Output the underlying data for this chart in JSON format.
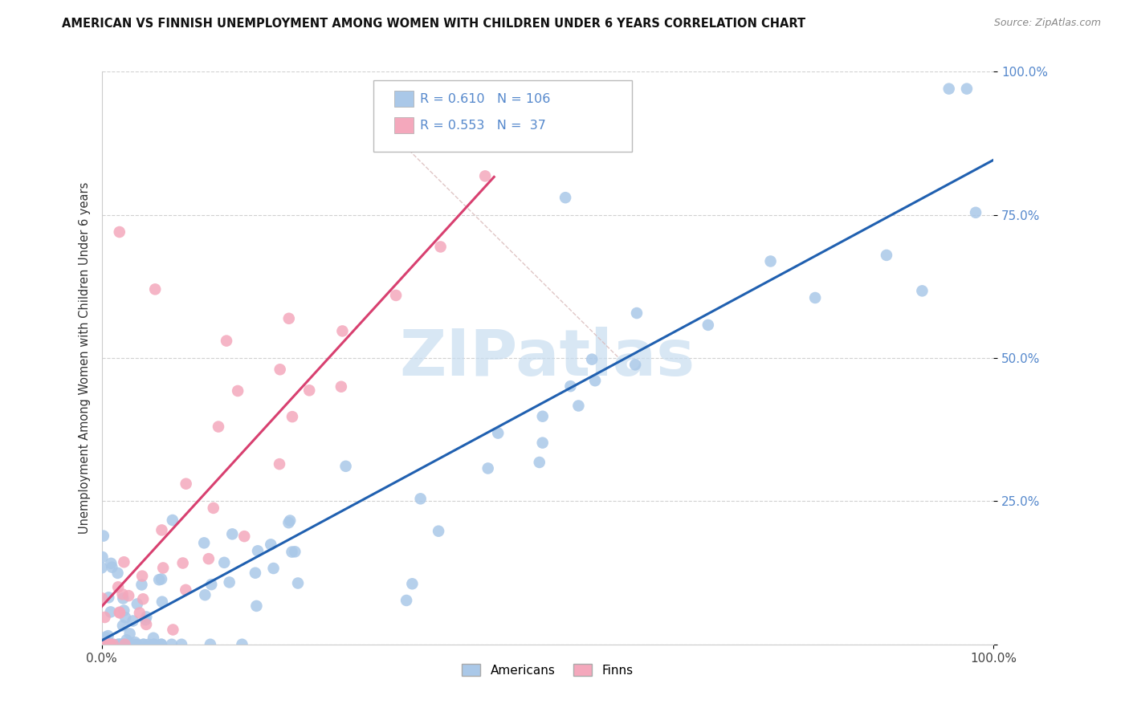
{
  "title": "AMERICAN VS FINNISH UNEMPLOYMENT AMONG WOMEN WITH CHILDREN UNDER 6 YEARS CORRELATION CHART",
  "source": "Source: ZipAtlas.com",
  "ylabel": "Unemployment Among Women with Children Under 6 years",
  "r_american": 0.61,
  "n_american": 106,
  "r_finnish": 0.553,
  "n_finnish": 37,
  "color_american": "#aac8e8",
  "color_finnish": "#f4a8bc",
  "line_color_american": "#2060b0",
  "line_color_finnish": "#d84070",
  "diagonal_color": "#d8b8b8",
  "watermark_color": "#c8ddf0",
  "legend_labels": [
    "Americans",
    "Finns"
  ],
  "background_color": "#ffffff",
  "grid_color": "#cccccc",
  "ytick_color": "#5588cc",
  "title_color": "#111111",
  "source_color": "#888888"
}
